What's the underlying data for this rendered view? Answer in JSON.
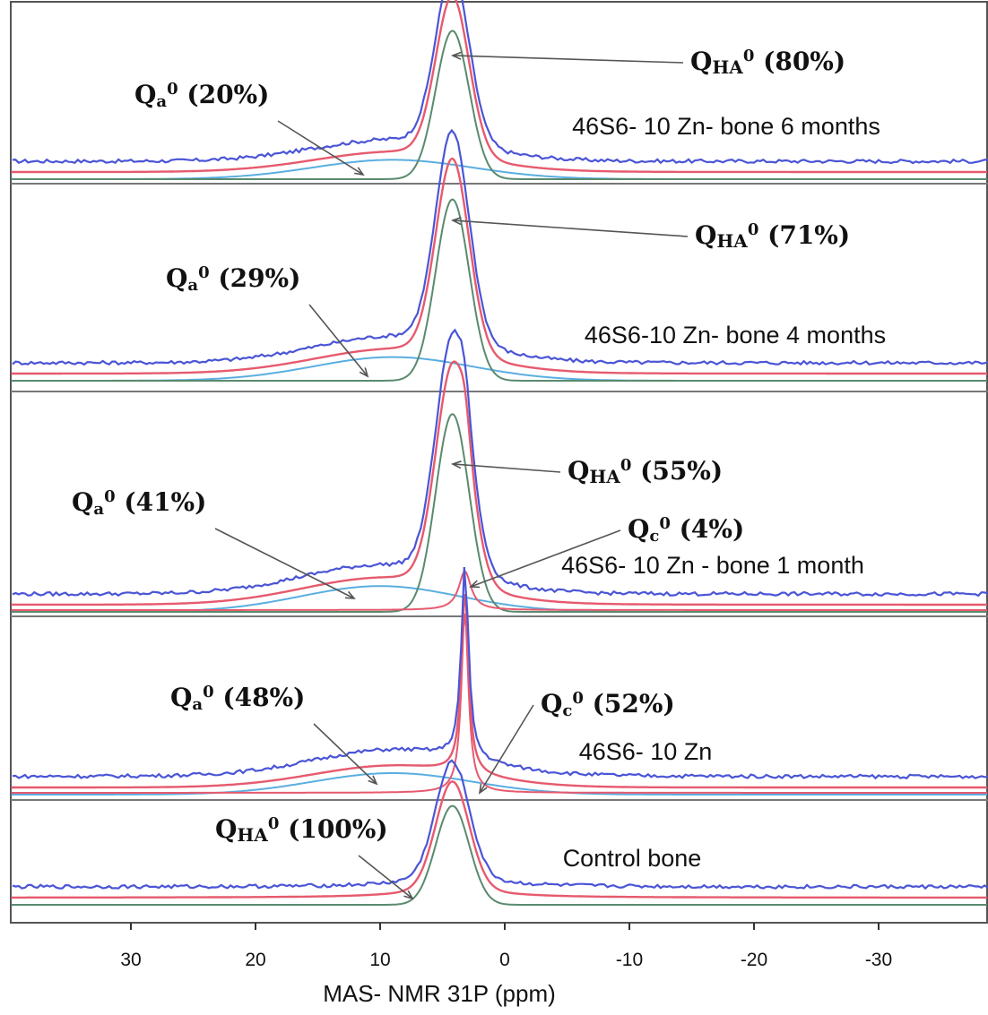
{
  "chart_data": {
    "type": "line",
    "xlabel": "MAS- NMR 31P (ppm)",
    "xlim": [
      40,
      -40
    ],
    "x_reversed": true,
    "x_ticks": [
      30,
      20,
      10,
      0,
      -10,
      -20,
      -30
    ],
    "x_tick_labels": [
      "30",
      "20",
      "10",
      "0",
      "-10",
      "-20",
      "-30"
    ],
    "grid": false,
    "series_colors": {
      "experimental": "#4a55d6",
      "total_fit": "#e65a6e",
      "component_HA_or_c": "#5a8a6e",
      "component_a": "#5aaee0"
    },
    "panels": [
      {
        "label": "46S6- 10 Zn- bone 6 months",
        "peaks": [
          {
            "name": "Q_HA^0",
            "position_ppm": 4.2,
            "percent": 80,
            "label": "(80%)"
          },
          {
            "name": "Q_a^0",
            "position_ppm": 9,
            "percent": 20,
            "label": "(20%)"
          }
        ]
      },
      {
        "label": "46S6-10 Zn- bone 4 months",
        "peaks": [
          {
            "name": "Q_HA^0",
            "position_ppm": 4.2,
            "percent": 71,
            "label": "(71%)"
          },
          {
            "name": "Q_a^0",
            "position_ppm": 9,
            "percent": 29,
            "label": "(29%)"
          }
        ]
      },
      {
        "label": "46S6- 10 Zn - bone 1 month",
        "peaks": [
          {
            "name": "Q_HA^0",
            "position_ppm": 4.2,
            "percent": 55,
            "label": "(55%)"
          },
          {
            "name": "Q_a^0",
            "position_ppm": 10,
            "percent": 41,
            "label": "(41%)"
          },
          {
            "name": "Q_c^0",
            "position_ppm": 3.2,
            "percent": 4,
            "label": "(4%)"
          }
        ]
      },
      {
        "label": "46S6- 10 Zn",
        "peaks": [
          {
            "name": "Q_a^0",
            "position_ppm": 9,
            "percent": 48,
            "label": "(48%)"
          },
          {
            "name": "Q_c^0",
            "position_ppm": 3.2,
            "percent": 52,
            "label": "(52%)"
          }
        ]
      },
      {
        "label": "Control bone",
        "peaks": [
          {
            "name": "Q_HA^0",
            "position_ppm": 4.2,
            "percent": 100,
            "label": "(100%)"
          }
        ]
      }
    ]
  }
}
